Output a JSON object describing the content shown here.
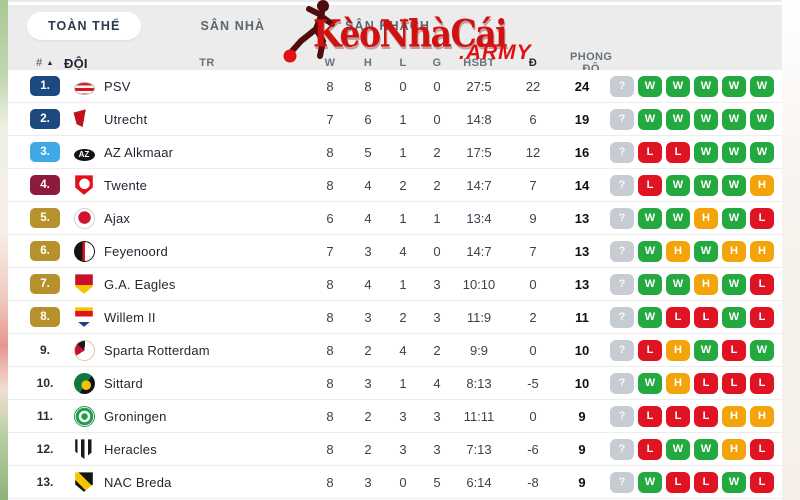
{
  "brand": {
    "name": "KèoNhàCái",
    "suffix": ".ARMY"
  },
  "tabs": [
    {
      "label": "TOÀN THỂ",
      "active": true
    },
    {
      "label": "SÂN NHÀ",
      "active": false
    },
    {
      "label": "SÂN KHÁCH",
      "active": false
    }
  ],
  "columns": [
    {
      "key": "pos",
      "label": "#",
      "sortable": true
    },
    {
      "key": "team",
      "label": "ĐỘI"
    },
    {
      "key": "played",
      "label": "TR"
    },
    {
      "key": "won",
      "label": "W"
    },
    {
      "key": "draw",
      "label": "H"
    },
    {
      "key": "lost",
      "label": "L"
    },
    {
      "key": "goals",
      "label": "G"
    },
    {
      "key": "diff",
      "label": "HSBT"
    },
    {
      "key": "points",
      "label": "Đ"
    },
    {
      "key": "form",
      "label": "PHONG ĐỘ"
    }
  ],
  "colors": {
    "form": {
      "W": "#23a93f",
      "H": "#f3a40b",
      "L": "#df1322",
      "?": "#c7ccd2"
    },
    "band_bg": "#ececec",
    "accent_red": "#cf1110",
    "pos_navy": "#1c4a7e",
    "pos_light_blue": "#3fa9e5",
    "pos_maroon": "#8e1a3d",
    "pos_gold": "#b7922c"
  },
  "rows": [
    {
      "pos": "1.",
      "pos_color": "#1c4a7e",
      "team": "PSV",
      "played": 8,
      "won": 8,
      "draw": 0,
      "lost": 0,
      "goals": "27:5",
      "diff": 22,
      "points": 24,
      "form": [
        "?",
        "W",
        "W",
        "W",
        "W",
        "W"
      ],
      "crest": {
        "shape": "ellipse",
        "css": "height:13px;margin-top:4px;background:repeating-linear-gradient(180deg,#e1121c 0 2.6px,#ffffff 2.6px 5.2px);border:1px solid #b9b9b9"
      }
    },
    {
      "pos": "2.",
      "pos_color": "#1c4a7e",
      "team": "Utrecht",
      "played": 7,
      "won": 6,
      "draw": 1,
      "lost": 0,
      "goals": "14:8",
      "diff": 6,
      "points": 19,
      "form": [
        "?",
        "W",
        "W",
        "W",
        "W",
        "W"
      ],
      "crest": {
        "shape": "shield",
        "css": "transform:rotate(-15deg);background:linear-gradient(115deg,#c2111c 0 48%,#ffffff 48%);border:1px solid #8d8d8d"
      }
    },
    {
      "pos": "3.",
      "pos_color": "#3fa9e5",
      "team": "AZ Alkmaar",
      "played": 8,
      "won": 5,
      "draw": 1,
      "lost": 2,
      "goals": "17:5",
      "diff": 12,
      "points": 16,
      "form": [
        "?",
        "L",
        "L",
        "W",
        "W",
        "W"
      ],
      "crest": {
        "shape": "ellipse",
        "css": "height:12px;margin-top:5px;background:#141414",
        "label": "AZ",
        "label_color": "#ffffff"
      }
    },
    {
      "pos": "4.",
      "pos_color": "#8e1a3d",
      "team": "Twente",
      "played": 8,
      "won": 4,
      "draw": 2,
      "lost": 2,
      "goals": "14:7",
      "diff": 7,
      "points": 14,
      "form": [
        "?",
        "L",
        "W",
        "W",
        "W",
        "H"
      ],
      "crest": {
        "shape": "shield",
        "css": "background:radial-gradient(circle at 50% 42%,#ffffff 0 5px,#e1121c 5.5px)"
      }
    },
    {
      "pos": "5.",
      "pos_color": "#b7922c",
      "team": "Ajax",
      "played": 6,
      "won": 4,
      "draw": 1,
      "lost": 1,
      "goals": "13:4",
      "diff": 9,
      "points": 13,
      "form": [
        "?",
        "W",
        "W",
        "H",
        "W",
        "L"
      ],
      "crest": {
        "shape": "circle",
        "css": "background:radial-gradient(circle at 50% 45%,#d2122e 0 6px,#ffffff 6.5px);border:1px solid #cfcfcf"
      }
    },
    {
      "pos": "6.",
      "pos_color": "#b7922c",
      "team": "Feyenoord",
      "played": 7,
      "won": 3,
      "draw": 4,
      "lost": 0,
      "goals": "14:7",
      "diff": 7,
      "points": 13,
      "form": [
        "?",
        "W",
        "H",
        "W",
        "H",
        "H"
      ],
      "crest": {
        "shape": "circle",
        "css": "background:linear-gradient(90deg,#141414 0 40%,#e1121c 40% 52%,#ffffff 52%);border:1px solid #141414"
      }
    },
    {
      "pos": "7.",
      "pos_color": "#b7922c",
      "team": "G.A. Eagles",
      "played": 8,
      "won": 4,
      "draw": 1,
      "lost": 3,
      "goals": "10:10",
      "diff": 0,
      "points": 13,
      "form": [
        "?",
        "W",
        "W",
        "H",
        "W",
        "L"
      ],
      "crest": {
        "shape": "shield",
        "css": "background:linear-gradient(180deg,#c8102e 0 52%,#f2c500 52%)"
      }
    },
    {
      "pos": "8.",
      "pos_color": "#b7922c",
      "team": "Willem II",
      "played": 8,
      "won": 3,
      "draw": 2,
      "lost": 3,
      "goals": "11:9",
      "diff": 2,
      "points": 11,
      "form": [
        "?",
        "W",
        "L",
        "L",
        "W",
        "L"
      ],
      "crest": {
        "shape": "shield",
        "css": "background:linear-gradient(180deg,#f2c500 0 18%,#e1121c 18% 46%,#ffffff 46% 72%,#1c3f94 72%)"
      }
    },
    {
      "pos": "9.",
      "pos_color": null,
      "team": "Sparta Rotterdam",
      "played": 8,
      "won": 2,
      "draw": 4,
      "lost": 2,
      "goals": "9:9",
      "diff": 0,
      "points": 10,
      "form": [
        "?",
        "L",
        "H",
        "W",
        "L",
        "W"
      ],
      "crest": {
        "shape": "circle",
        "css": "background:conic-gradient(from 40deg,#ffffff 0 55%,#c8102e 55% 75%,#1a1a1a 75% 90%,#ffffff 90%);border:1px solid #d8c9a3"
      }
    },
    {
      "pos": "10.",
      "pos_color": null,
      "team": "Sittard",
      "played": 8,
      "won": 3,
      "draw": 1,
      "lost": 4,
      "goals": "8:13",
      "diff": -5,
      "points": 10,
      "form": [
        "?",
        "W",
        "H",
        "L",
        "L",
        "L"
      ],
      "crest": {
        "shape": "circle",
        "css": "background:radial-gradient(circle at 58% 58%,#f2c500 0 4.5px,rgba(0,0,0,0) 5px),linear-gradient(125deg,#0c7a3e 0 55%,#141414 55%)"
      }
    },
    {
      "pos": "11.",
      "pos_color": null,
      "team": "Groningen",
      "played": 8,
      "won": 2,
      "draw": 3,
      "lost": 3,
      "goals": "11:11",
      "diff": 0,
      "points": 9,
      "form": [
        "?",
        "L",
        "L",
        "L",
        "H",
        "H"
      ],
      "crest": {
        "shape": "circle",
        "css": "background:radial-gradient(circle,#1f9d4d 0 3px,#ffffff 3.5px 5.5px,#1f9d4d 6px 8.5px,#ffffff 9px);border:1px solid #1f9d4d"
      }
    },
    {
      "pos": "12.",
      "pos_color": null,
      "team": "Heracles",
      "played": 8,
      "won": 2,
      "draw": 3,
      "lost": 3,
      "goals": "7:13",
      "diff": -6,
      "points": 9,
      "form": [
        "?",
        "L",
        "W",
        "W",
        "H",
        "L"
      ],
      "crest": {
        "shape": "shield",
        "css": "background:repeating-linear-gradient(90deg,#1a1a1a 0 3.5px,#ffffff 3.5px 7px)"
      }
    },
    {
      "pos": "13.",
      "pos_color": null,
      "team": "NAC Breda",
      "played": 8,
      "won": 3,
      "draw": 0,
      "lost": 5,
      "goals": "6:14",
      "diff": -8,
      "points": 9,
      "form": [
        "?",
        "W",
        "L",
        "L",
        "W",
        "L"
      ],
      "crest": {
        "shape": "shield",
        "css": "background:linear-gradient(45deg,#141414 0 34%,#f2c500 34% 60%,#141414 60%)"
      }
    }
  ]
}
